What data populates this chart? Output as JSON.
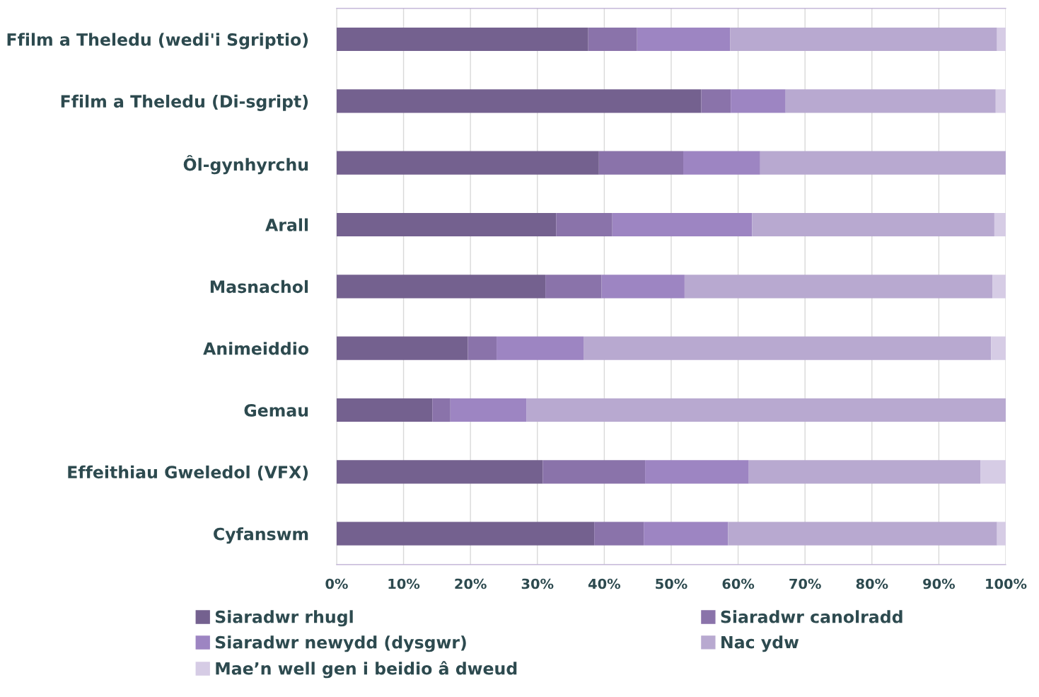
{
  "chart_data": {
    "type": "bar",
    "orientation": "horizontal",
    "stacked": true,
    "categories": [
      "Ffilm a Theledu (wedi'i Sgriptio)",
      "Ffilm a Theledu (Di-sgript)",
      "Ôl-gynhyrchu",
      "Arall",
      "Masnachol",
      "Animeiddio",
      "Gemau",
      "Effeithiau Gweledol (VFX)",
      "Cyfanswm"
    ],
    "series": [
      {
        "name": "Siaradwr rhugl",
        "color": "#74618f",
        "values": [
          37.6,
          54.5,
          39.2,
          32.8,
          31.2,
          19.6,
          14.3,
          30.8,
          38.5
        ]
      },
      {
        "name": "Siaradwr canolradd",
        "color": "#8a73aa",
        "values": [
          7.3,
          4.4,
          12.6,
          8.4,
          8.4,
          4.3,
          2.7,
          15.3,
          7.4
        ]
      },
      {
        "name": "Siaradwr newydd (dysgwr)",
        "color": "#9d85c2",
        "values": [
          13.9,
          8.2,
          11.5,
          20.9,
          12.4,
          13.0,
          11.4,
          15.5,
          12.6
        ]
      },
      {
        "name": "Nac ydw",
        "color": "#b8a9d0",
        "values": [
          39.9,
          31.4,
          36.7,
          36.2,
          46.0,
          60.9,
          71.6,
          34.6,
          40.2
        ]
      },
      {
        "name": "Mae’n well gen i beidio â dweud",
        "color": "#d6cce5",
        "values": [
          1.3,
          1.5,
          0,
          1.7,
          2.0,
          2.2,
          0,
          3.8,
          1.3
        ]
      }
    ],
    "xlim": [
      0,
      100
    ],
    "xticks": [
      {
        "value": 0,
        "label": "0%"
      },
      {
        "value": 10,
        "label": "10%"
      },
      {
        "value": 20,
        "label": "20%"
      },
      {
        "value": 30,
        "label": "30%"
      },
      {
        "value": 40,
        "label": "40%"
      },
      {
        "value": 50,
        "label": "50%"
      },
      {
        "value": 60,
        "label": "60%"
      },
      {
        "value": 70,
        "label": "70%"
      },
      {
        "value": 80,
        "label": "80%"
      },
      {
        "value": 90,
        "label": "90%"
      },
      {
        "value": 100,
        "label": "100%"
      }
    ],
    "grid": "x",
    "legend": "bottom"
  }
}
